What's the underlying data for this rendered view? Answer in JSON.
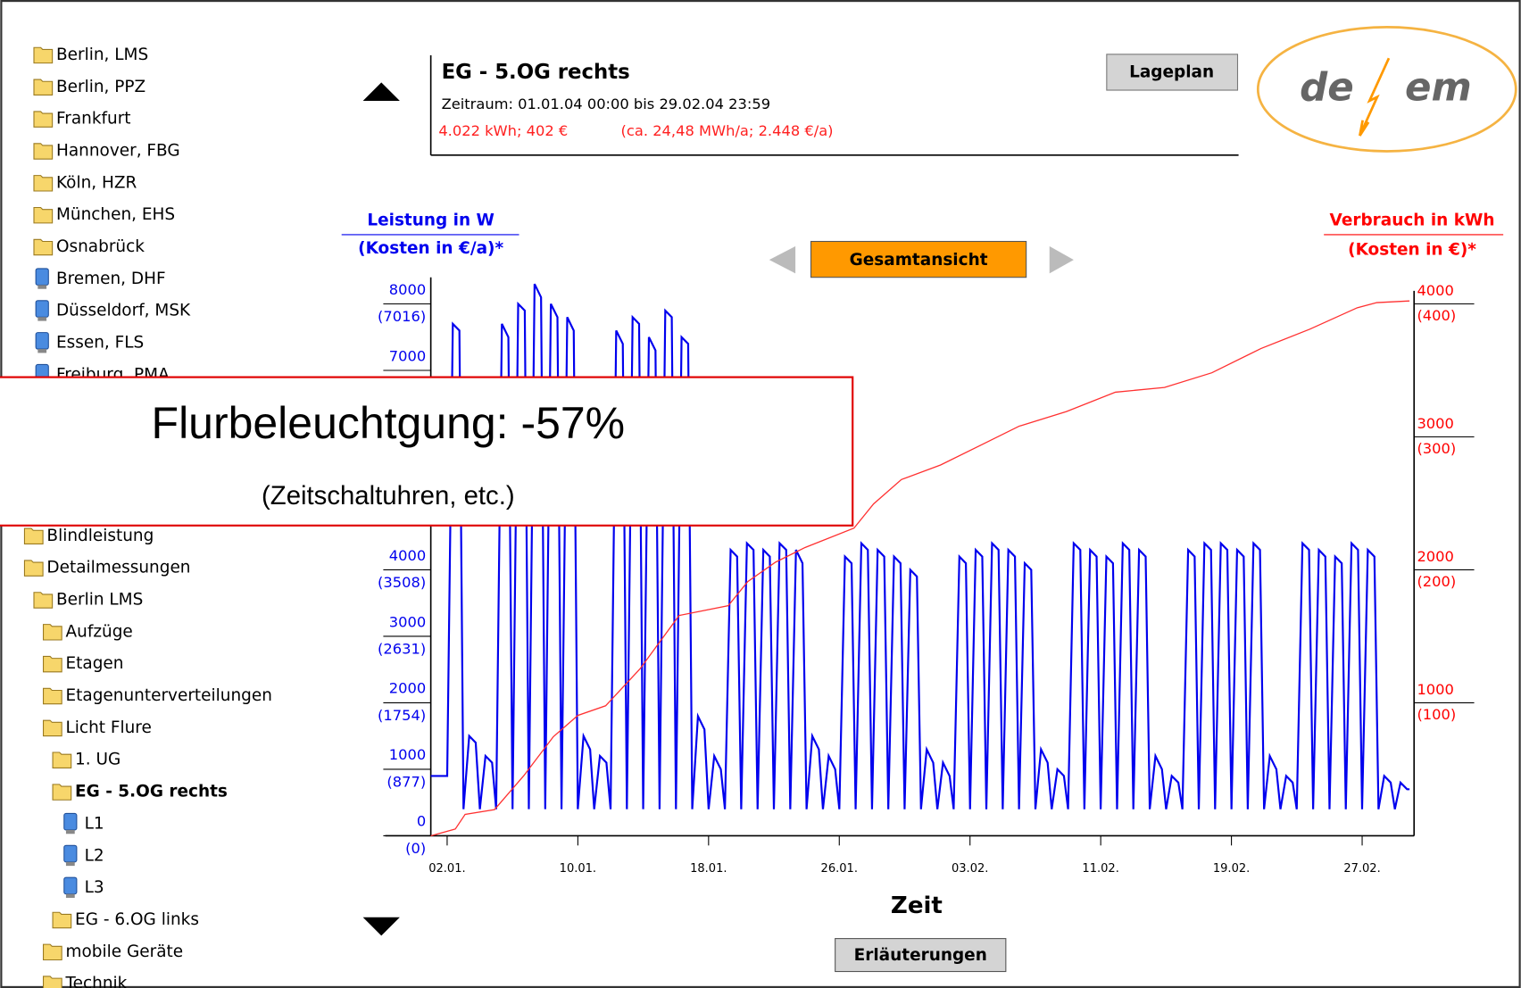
{
  "tree_top": [
    {
      "label": "Berlin, LMS",
      "icon": "folder",
      "depth": 1
    },
    {
      "label": "Berlin, PPZ",
      "icon": "folder",
      "depth": 1
    },
    {
      "label": "Frankfurt",
      "icon": "folder",
      "depth": 1
    },
    {
      "label": "Hannover, FBG",
      "icon": "folder",
      "depth": 1
    },
    {
      "label": "Köln, HZR",
      "icon": "folder",
      "depth": 1
    },
    {
      "label": "München, EHS",
      "icon": "folder",
      "depth": 1
    },
    {
      "label": "Osnabrück",
      "icon": "folder",
      "depth": 1
    },
    {
      "label": "Bremen, DHF",
      "icon": "pc",
      "depth": 1
    },
    {
      "label": "Düsseldorf, MSK",
      "icon": "pc",
      "depth": 1
    },
    {
      "label": "Essen, FLS",
      "icon": "pc",
      "depth": 1
    },
    {
      "label": "Freiburg, PMA",
      "icon": "pc",
      "depth": 1
    }
  ],
  "tree_bottom": [
    {
      "label": "Blindleistung",
      "icon": "folder",
      "depth": 0
    },
    {
      "label": "Detailmessungen",
      "icon": "folder",
      "depth": 0
    },
    {
      "label": "Berlin LMS",
      "icon": "folder",
      "depth": 1
    },
    {
      "label": "Aufzüge",
      "icon": "folder",
      "depth": 2
    },
    {
      "label": "Etagen",
      "icon": "folder",
      "depth": 2
    },
    {
      "label": "Etagenunterverteilungen",
      "icon": "folder",
      "depth": 2
    },
    {
      "label": "Licht Flure",
      "icon": "folder",
      "depth": 2
    },
    {
      "label": "1. UG",
      "icon": "folder",
      "depth": 3
    },
    {
      "label": "EG - 5.OG rechts",
      "icon": "folder",
      "depth": 3,
      "selected": true
    },
    {
      "label": "L1",
      "icon": "pc",
      "depth": 4
    },
    {
      "label": "L2",
      "icon": "pc",
      "depth": 4
    },
    {
      "label": "L3",
      "icon": "pc",
      "depth": 4
    },
    {
      "label": "EG - 6.OG links",
      "icon": "folder",
      "depth": 3
    },
    {
      "label": "mobile Geräte",
      "icon": "folder",
      "depth": 2
    },
    {
      "label": "Technik",
      "icon": "folder",
      "depth": 2
    }
  ],
  "header": {
    "title": "EG - 5.OG rechts",
    "period": "Zeitraum: 01.01.04 00:00 bis 29.02.04 23:59",
    "consumption": "4.022 kWh; 402 €",
    "annual": "(ca. 24,48 MWh/a; 2.448 €/a)"
  },
  "buttons": {
    "map": "Lageplan",
    "overview": "Gesamtansicht",
    "help": "Erläuterungen"
  },
  "logo": {
    "left": "de",
    "right": "em"
  },
  "overlay": {
    "title": "Flurbeleuchtgung: -57%",
    "subtitle": "(Zeitschaltuhren, etc.)"
  },
  "chart_data": {
    "type": "line",
    "ylabel": "Leistung in W",
    "ylabel_sub": "(Kosten in €/a)*",
    "y2label": "Verbrauch in kWh",
    "y2label_sub": "(Kosten in €)*",
    "xlabel": "Zeit",
    "xlim": [
      1,
      61
    ],
    "xticks": [
      {
        "value": 2,
        "label": "02.01."
      },
      {
        "value": 10,
        "label": "10.01."
      },
      {
        "value": 18,
        "label": "18.01."
      },
      {
        "value": 26,
        "label": "26.01."
      },
      {
        "value": 34,
        "label": "03.02."
      },
      {
        "value": 42,
        "label": "11.02."
      },
      {
        "value": 50,
        "label": "19.02."
      },
      {
        "value": 58,
        "label": "27.02."
      }
    ],
    "ylim": [
      0,
      8400
    ],
    "yticks": [
      0,
      1000,
      2000,
      3000,
      4000,
      7000,
      8000
    ],
    "ycost_labels": [
      "(0)",
      "(877)",
      "(1754)",
      "(2631)",
      "(3508)",
      null,
      "(7016)"
    ],
    "y2lim": [
      0,
      4200
    ],
    "y2ticks": [
      1000,
      2000,
      3000,
      4000
    ],
    "y2cost_labels": [
      "(100)",
      "(200)",
      "(300)",
      "(400)"
    ],
    "series": [
      {
        "color": "#0000ee",
        "x": [
          1,
          1.35,
          1.75,
          2,
          2.35,
          2.75,
          3,
          3.35,
          3.75,
          4,
          4.35,
          4.75,
          5,
          5.35,
          5.75,
          6,
          6.35,
          6.75,
          7,
          7.35,
          7.75,
          8,
          8.35,
          8.75,
          9,
          9.35,
          9.75,
          10,
          10.35,
          10.75,
          11,
          11.35,
          11.75,
          12,
          12.35,
          12.75,
          13,
          13.35,
          13.75,
          14,
          14.35,
          14.75,
          15,
          15.35,
          15.75,
          16,
          16.35,
          16.75,
          17,
          17.35,
          17.75,
          18,
          18.35,
          18.75,
          19,
          19.35,
          19.75,
          20,
          20.35,
          20.75,
          21,
          21.35,
          21.75,
          22,
          22.35,
          22.75,
          23,
          23.35,
          23.75,
          24,
          24.35,
          24.75,
          25,
          25.35,
          25.75,
          26,
          26.35,
          26.75,
          27,
          27.35,
          27.75,
          28,
          28.35,
          28.75,
          29,
          29.35,
          29.75,
          30,
          30.35,
          30.75,
          31,
          31.35,
          31.75,
          32,
          32.35,
          32.75,
          33,
          33.35,
          33.75,
          34,
          34.35,
          34.75,
          35,
          35.35,
          35.75,
          36,
          36.35,
          36.75,
          37,
          37.35,
          37.75,
          38,
          38.35,
          38.75,
          39,
          39.35,
          39.75,
          40,
          40.35,
          40.75,
          41,
          41.35,
          41.75,
          42,
          42.35,
          42.75,
          43,
          43.35,
          43.75,
          44,
          44.35,
          44.75,
          45,
          45.35,
          45.75,
          46,
          46.35,
          46.75,
          47,
          47.35,
          47.75,
          48,
          48.35,
          48.75,
          49,
          49.35,
          49.75,
          50,
          50.35,
          50.75,
          51,
          51.35,
          51.75,
          52,
          52.35,
          52.75,
          53,
          53.35,
          53.75,
          54,
          54.35,
          54.75,
          55,
          55.35,
          55.75,
          56,
          56.35,
          56.75,
          57,
          57.35,
          57.75,
          58,
          58.35,
          58.75,
          59,
          59.35,
          59.75,
          60,
          60.35,
          60.75,
          60.9
        ],
        "values": [
          900,
          900,
          900,
          900,
          7700,
          7600,
          400,
          1500,
          1400,
          400,
          1200,
          1100,
          400,
          7700,
          7500,
          400,
          8000,
          7900,
          400,
          8300,
          8100,
          400,
          8000,
          7800,
          400,
          7800,
          7600,
          400,
          1500,
          1300,
          400,
          1200,
          1100,
          400,
          7600,
          7400,
          400,
          7800,
          7700,
          400,
          7500,
          7300,
          400,
          7900,
          7800,
          400,
          7500,
          7400,
          400,
          1800,
          1600,
          400,
          1200,
          1000,
          400,
          4300,
          4200,
          400,
          4400,
          4300,
          400,
          4300,
          4200,
          400,
          4400,
          4300,
          400,
          4300,
          4100,
          400,
          1500,
          1300,
          400,
          1200,
          1000,
          400,
          4200,
          4100,
          400,
          4400,
          4300,
          400,
          4300,
          4200,
          400,
          4200,
          4100,
          400,
          4000,
          3900,
          400,
          1300,
          1100,
          400,
          1100,
          900,
          400,
          4200,
          4100,
          400,
          4300,
          4200,
          400,
          4400,
          4300,
          400,
          4300,
          4200,
          400,
          4100,
          4000,
          400,
          1300,
          1100,
          400,
          1000,
          900,
          400,
          4400,
          4300,
          400,
          4300,
          4200,
          400,
          4200,
          4100,
          400,
          4400,
          4300,
          400,
          4300,
          4200,
          400,
          1200,
          1000,
          400,
          900,
          800,
          400,
          4300,
          4200,
          400,
          4400,
          4300,
          400,
          4400,
          4300,
          400,
          4300,
          4200,
          400,
          4400,
          4300,
          400,
          1200,
          1000,
          400,
          900,
          800,
          400,
          4400,
          4300,
          400,
          4300,
          4200,
          400,
          4200,
          4100,
          400,
          4400,
          4300,
          400,
          4300,
          4200,
          400,
          900,
          800,
          400,
          800,
          700,
          700
        ]
      },
      {
        "color": "#ff3030",
        "axis": "y2",
        "x": [
          1,
          2.5,
          3.1,
          4.9,
          6.7,
          8.5,
          10,
          11.7,
          13.8,
          16.2,
          19.2,
          20.4,
          22.1,
          23.9,
          26.9,
          28.1,
          29.8,
          32.2,
          34.6,
          37,
          39.9,
          42.9,
          45.9,
          48.8,
          51.8,
          54.8,
          57.7,
          58.9,
          60.9
        ],
        "values": [
          0,
          51,
          161,
          197,
          453,
          745,
          905,
          978,
          1255,
          1657,
          1730,
          1912,
          2058,
          2168,
          2314,
          2496,
          2679,
          2788,
          2934,
          3080,
          3190,
          3336,
          3372,
          3482,
          3664,
          3810,
          3971,
          4010,
          4022
        ]
      }
    ]
  }
}
